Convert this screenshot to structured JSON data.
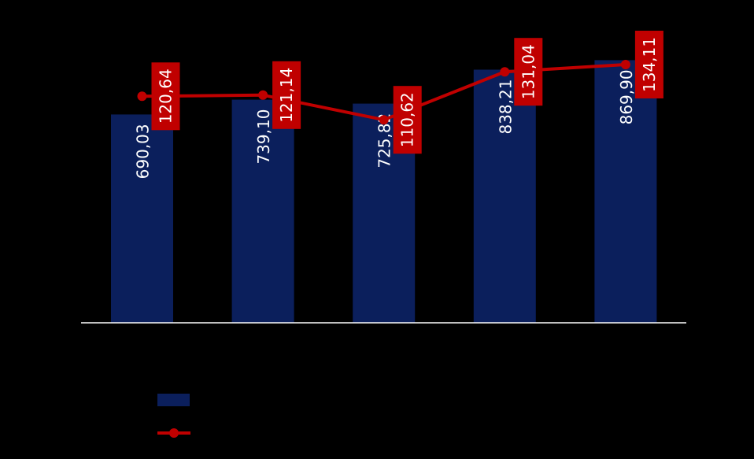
{
  "chart_data": {
    "type": "bar",
    "categories": [
      "",
      "",
      "",
      "",
      ""
    ],
    "bar_series": {
      "name": "",
      "values": [
        690.03,
        739.1,
        725.82,
        838.21,
        869.9
      ],
      "labels": [
        "690,03",
        "739,10",
        "725,82",
        "838,21",
        "869,90"
      ],
      "color": "#0b1f5c"
    },
    "line_series": {
      "name": "",
      "values": [
        120.64,
        121.14,
        110.62,
        131.04,
        134.11
      ],
      "labels": [
        "120,64",
        "121,14",
        "110,62",
        "131,04",
        "134,11"
      ],
      "color": "#c00000"
    },
    "title": "",
    "xlabel": "",
    "ylabel": "",
    "grid": false,
    "legend": "bottom-left",
    "background": "#000000",
    "axis_color": "#ffffff"
  }
}
